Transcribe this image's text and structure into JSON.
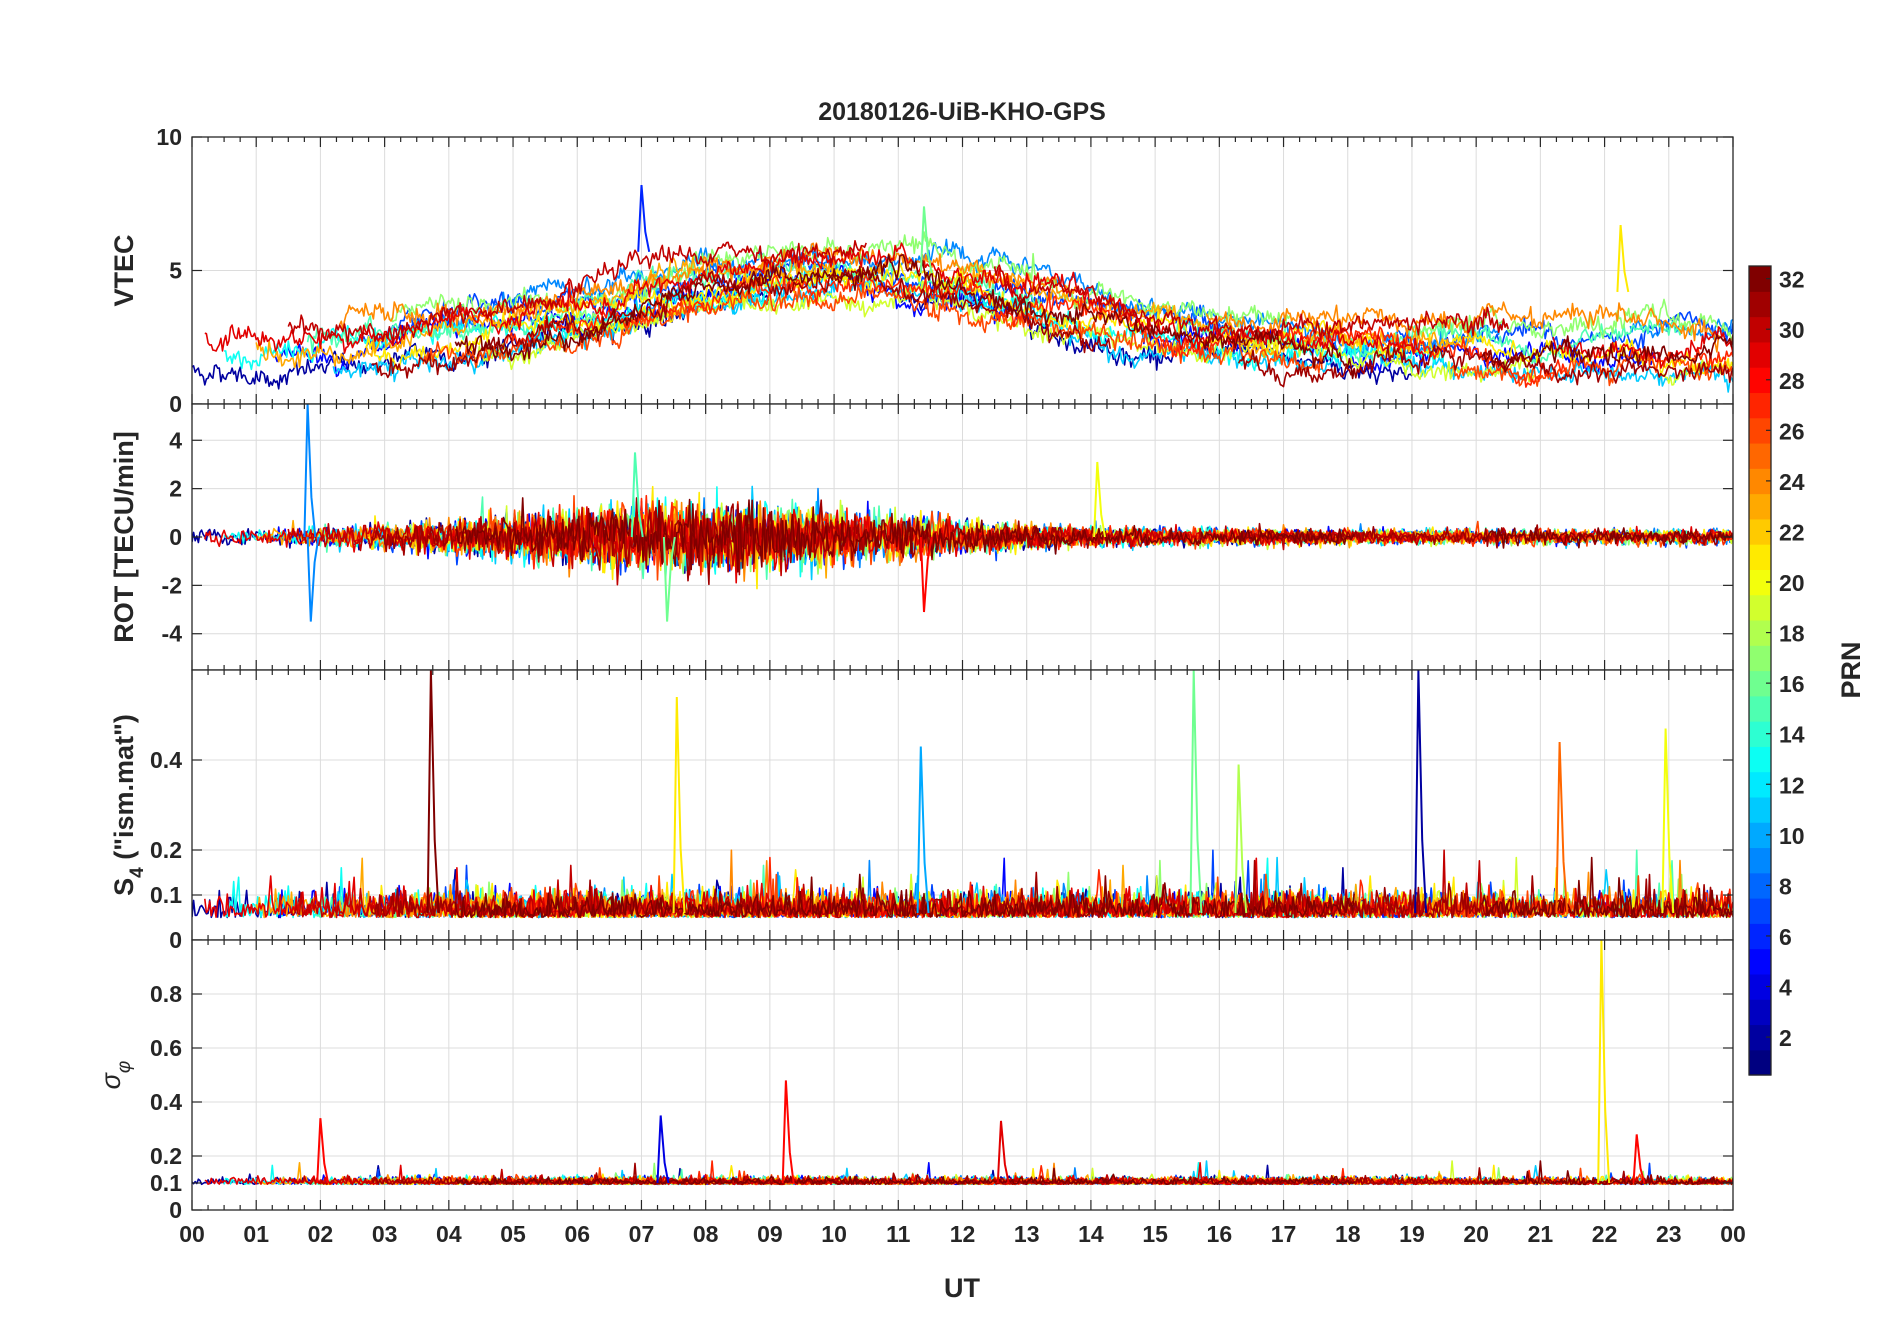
{
  "chart_data": {
    "type": "line",
    "title": "20180126-UiB-KHO-GPS",
    "xlabel": "UT",
    "x_ticks": [
      "00",
      "01",
      "02",
      "03",
      "04",
      "05",
      "06",
      "07",
      "08",
      "09",
      "10",
      "11",
      "12",
      "13",
      "14",
      "15",
      "16",
      "17",
      "18",
      "19",
      "20",
      "21",
      "22",
      "23",
      "00"
    ],
    "xlim": [
      0,
      24
    ],
    "colorbar": {
      "label": "PRN",
      "range": [
        1,
        32
      ],
      "ticks": [
        "2",
        "4",
        "6",
        "8",
        "10",
        "12",
        "14",
        "16",
        "18",
        "20",
        "22",
        "24",
        "26",
        "28",
        "30",
        "32"
      ],
      "colormap": "jet"
    },
    "panels": [
      {
        "name": "vtec",
        "ylabel": "VTEC",
        "ylim": [
          0,
          10
        ],
        "yticks": [
          "0",
          "5",
          "10"
        ],
        "typical_range": [
          1,
          7
        ],
        "peaks": [
          {
            "x": 7.0,
            "y": 8.2,
            "prn": 6
          },
          {
            "x": 11.4,
            "y": 7.4,
            "prn": 16
          },
          {
            "x": 22.25,
            "y": 6.7,
            "prn": 21
          }
        ]
      },
      {
        "name": "rot",
        "ylabel": "ROT [TECU/min]",
        "ylim": [
          -5.5,
          5.5
        ],
        "yticks": [
          "-4",
          "-2",
          "0",
          "2",
          "4"
        ],
        "typical_range": [
          -0.4,
          0.4
        ],
        "peaks": [
          {
            "x": 1.8,
            "y": 5.5,
            "prn": 9
          },
          {
            "x": 1.85,
            "y": -3.5,
            "prn": 9
          },
          {
            "x": 6.9,
            "y": 3.5,
            "prn": 15
          },
          {
            "x": 7.4,
            "y": -3.5,
            "prn": 16
          },
          {
            "x": 14.1,
            "y": 3.1,
            "prn": 20
          },
          {
            "x": 11.4,
            "y": -3.1,
            "prn": 28
          }
        ]
      },
      {
        "name": "s4",
        "ylabel": "S4 (\"ism.mat\")",
        "ylabel_main": "S",
        "ylabel_sub": "4",
        "ylabel_rest": " (\"ism.mat\")",
        "ylim": [
          0,
          0.6
        ],
        "yticks": [
          "0",
          "0.1",
          "0.2",
          "0.4"
        ],
        "typical_range": [
          0.03,
          0.12
        ],
        "peaks": [
          {
            "x": 3.72,
            "y": 0.6,
            "prn": 32
          },
          {
            "x": 7.55,
            "y": 0.54,
            "prn": 21
          },
          {
            "x": 11.35,
            "y": 0.43,
            "prn": 10
          },
          {
            "x": 15.6,
            "y": 0.6,
            "prn": 16
          },
          {
            "x": 16.3,
            "y": 0.39,
            "prn": 18
          },
          {
            "x": 19.1,
            "y": 0.6,
            "prn": 2
          },
          {
            "x": 21.3,
            "y": 0.44,
            "prn": 25
          },
          {
            "x": 22.95,
            "y": 0.47,
            "prn": 20
          }
        ]
      },
      {
        "name": "sigma_phi",
        "ylabel": "σφ",
        "ylabel_main": "σ",
        "ylabel_sub": "φ",
        "ylim": [
          0,
          1
        ],
        "yticks": [
          "0",
          "0.1",
          "0.2",
          "0.4",
          "0.6",
          "0.8"
        ],
        "typical_range": [
          0.08,
          0.13
        ],
        "peaks": [
          {
            "x": 2.0,
            "y": 0.34,
            "prn": 28
          },
          {
            "x": 7.3,
            "y": 0.35,
            "prn": 4
          },
          {
            "x": 9.25,
            "y": 0.48,
            "prn": 28
          },
          {
            "x": 12.6,
            "y": 0.33,
            "prn": 29
          },
          {
            "x": 21.95,
            "y": 1.0,
            "prn": 21
          },
          {
            "x": 22.5,
            "y": 0.28,
            "prn": 28
          }
        ]
      }
    ]
  }
}
